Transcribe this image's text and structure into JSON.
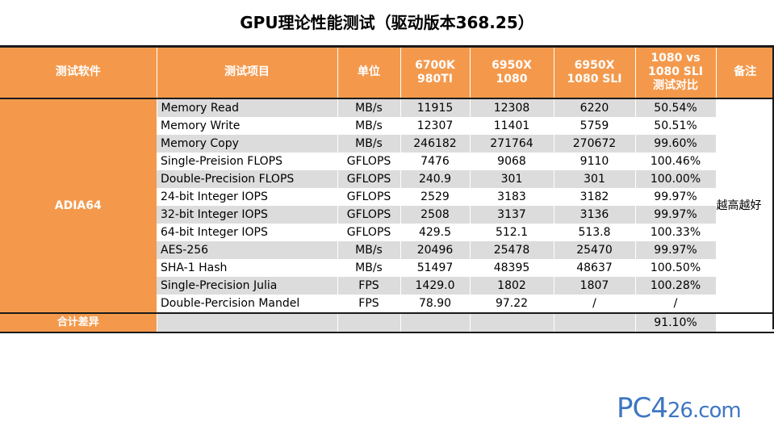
{
  "title": "GPU理论性能测试（驱动版本368.25）",
  "headers": {
    "software": "测试软件",
    "item": "测试项目",
    "unit": "单位",
    "col1_line1": "6700K",
    "col1_line2": "980TI",
    "col2_line1": "6950X",
    "col2_line2": "1080",
    "col3_line1": "6950X",
    "col3_line2": "1080 SLI",
    "col4_line1": "1080 vs",
    "col4_line2": "1080 SLI",
    "col4_line3": "测试对比",
    "note": "备注"
  },
  "software": "ADIA64",
  "note": "越高越好",
  "rows": [
    {
      "item": "Memory Read",
      "unit": "MB/s",
      "v1": "11915",
      "v2": "12308",
      "v3": "6220",
      "ratio": "50.54%"
    },
    {
      "item": "Memory Write",
      "unit": "MB/s",
      "v1": "12307",
      "v2": "11401",
      "v3": "5759",
      "ratio": "50.51%"
    },
    {
      "item": "Memory Copy",
      "unit": "MB/s",
      "v1": "246182",
      "v2": "271764",
      "v3": "270672",
      "ratio": "99.60%"
    },
    {
      "item": "Single-Preision FLOPS",
      "unit": "GFLOPS",
      "v1": "7476",
      "v2": "9068",
      "v3": "9110",
      "ratio": "100.46%"
    },
    {
      "item": "Double-Precision FLOPS",
      "unit": "GFLOPS",
      "v1": "240.9",
      "v2": "301",
      "v3": "301",
      "ratio": "100.00%"
    },
    {
      "item": "24-bit Integer IOPS",
      "unit": "GFLOPS",
      "v1": "2529",
      "v2": "3183",
      "v3": "3182",
      "ratio": "99.97%"
    },
    {
      "item": "32-bit Integer IOPS",
      "unit": "GFLOPS",
      "v1": "2508",
      "v2": "3137",
      "v3": "3136",
      "ratio": "99.97%"
    },
    {
      "item": "64-bit Integer IOPS",
      "unit": "GFLOPS",
      "v1": "429.5",
      "v2": "512.1",
      "v3": "513.8",
      "ratio": "100.33%"
    },
    {
      "item": "AES-256",
      "unit": "MB/s",
      "v1": "20496",
      "v2": "25478",
      "v3": "25470",
      "ratio": "99.97%"
    },
    {
      "item": "SHA-1 Hash",
      "unit": "MB/s",
      "v1": "51497",
      "v2": "48395",
      "v3": "48637",
      "ratio": "100.50%"
    },
    {
      "item": "Single-Precision Julia",
      "unit": "FPS",
      "v1": "1429.0",
      "v2": "1802",
      "v3": "1807",
      "ratio": "100.28%"
    },
    {
      "item": "Double-Percision Mandel",
      "unit": "FPS",
      "v1": "78.90",
      "v2": "97.22",
      "v3": "/",
      "ratio": "/"
    }
  ],
  "total": {
    "label": "合计差异",
    "ratio": "91.10%"
  },
  "watermark": {
    "main": "PC4",
    "small": "26.com"
  },
  "colors": {
    "header_bg": "#f4994c",
    "row_shade": "#dcdcdc",
    "watermark": "#3f77c2"
  }
}
